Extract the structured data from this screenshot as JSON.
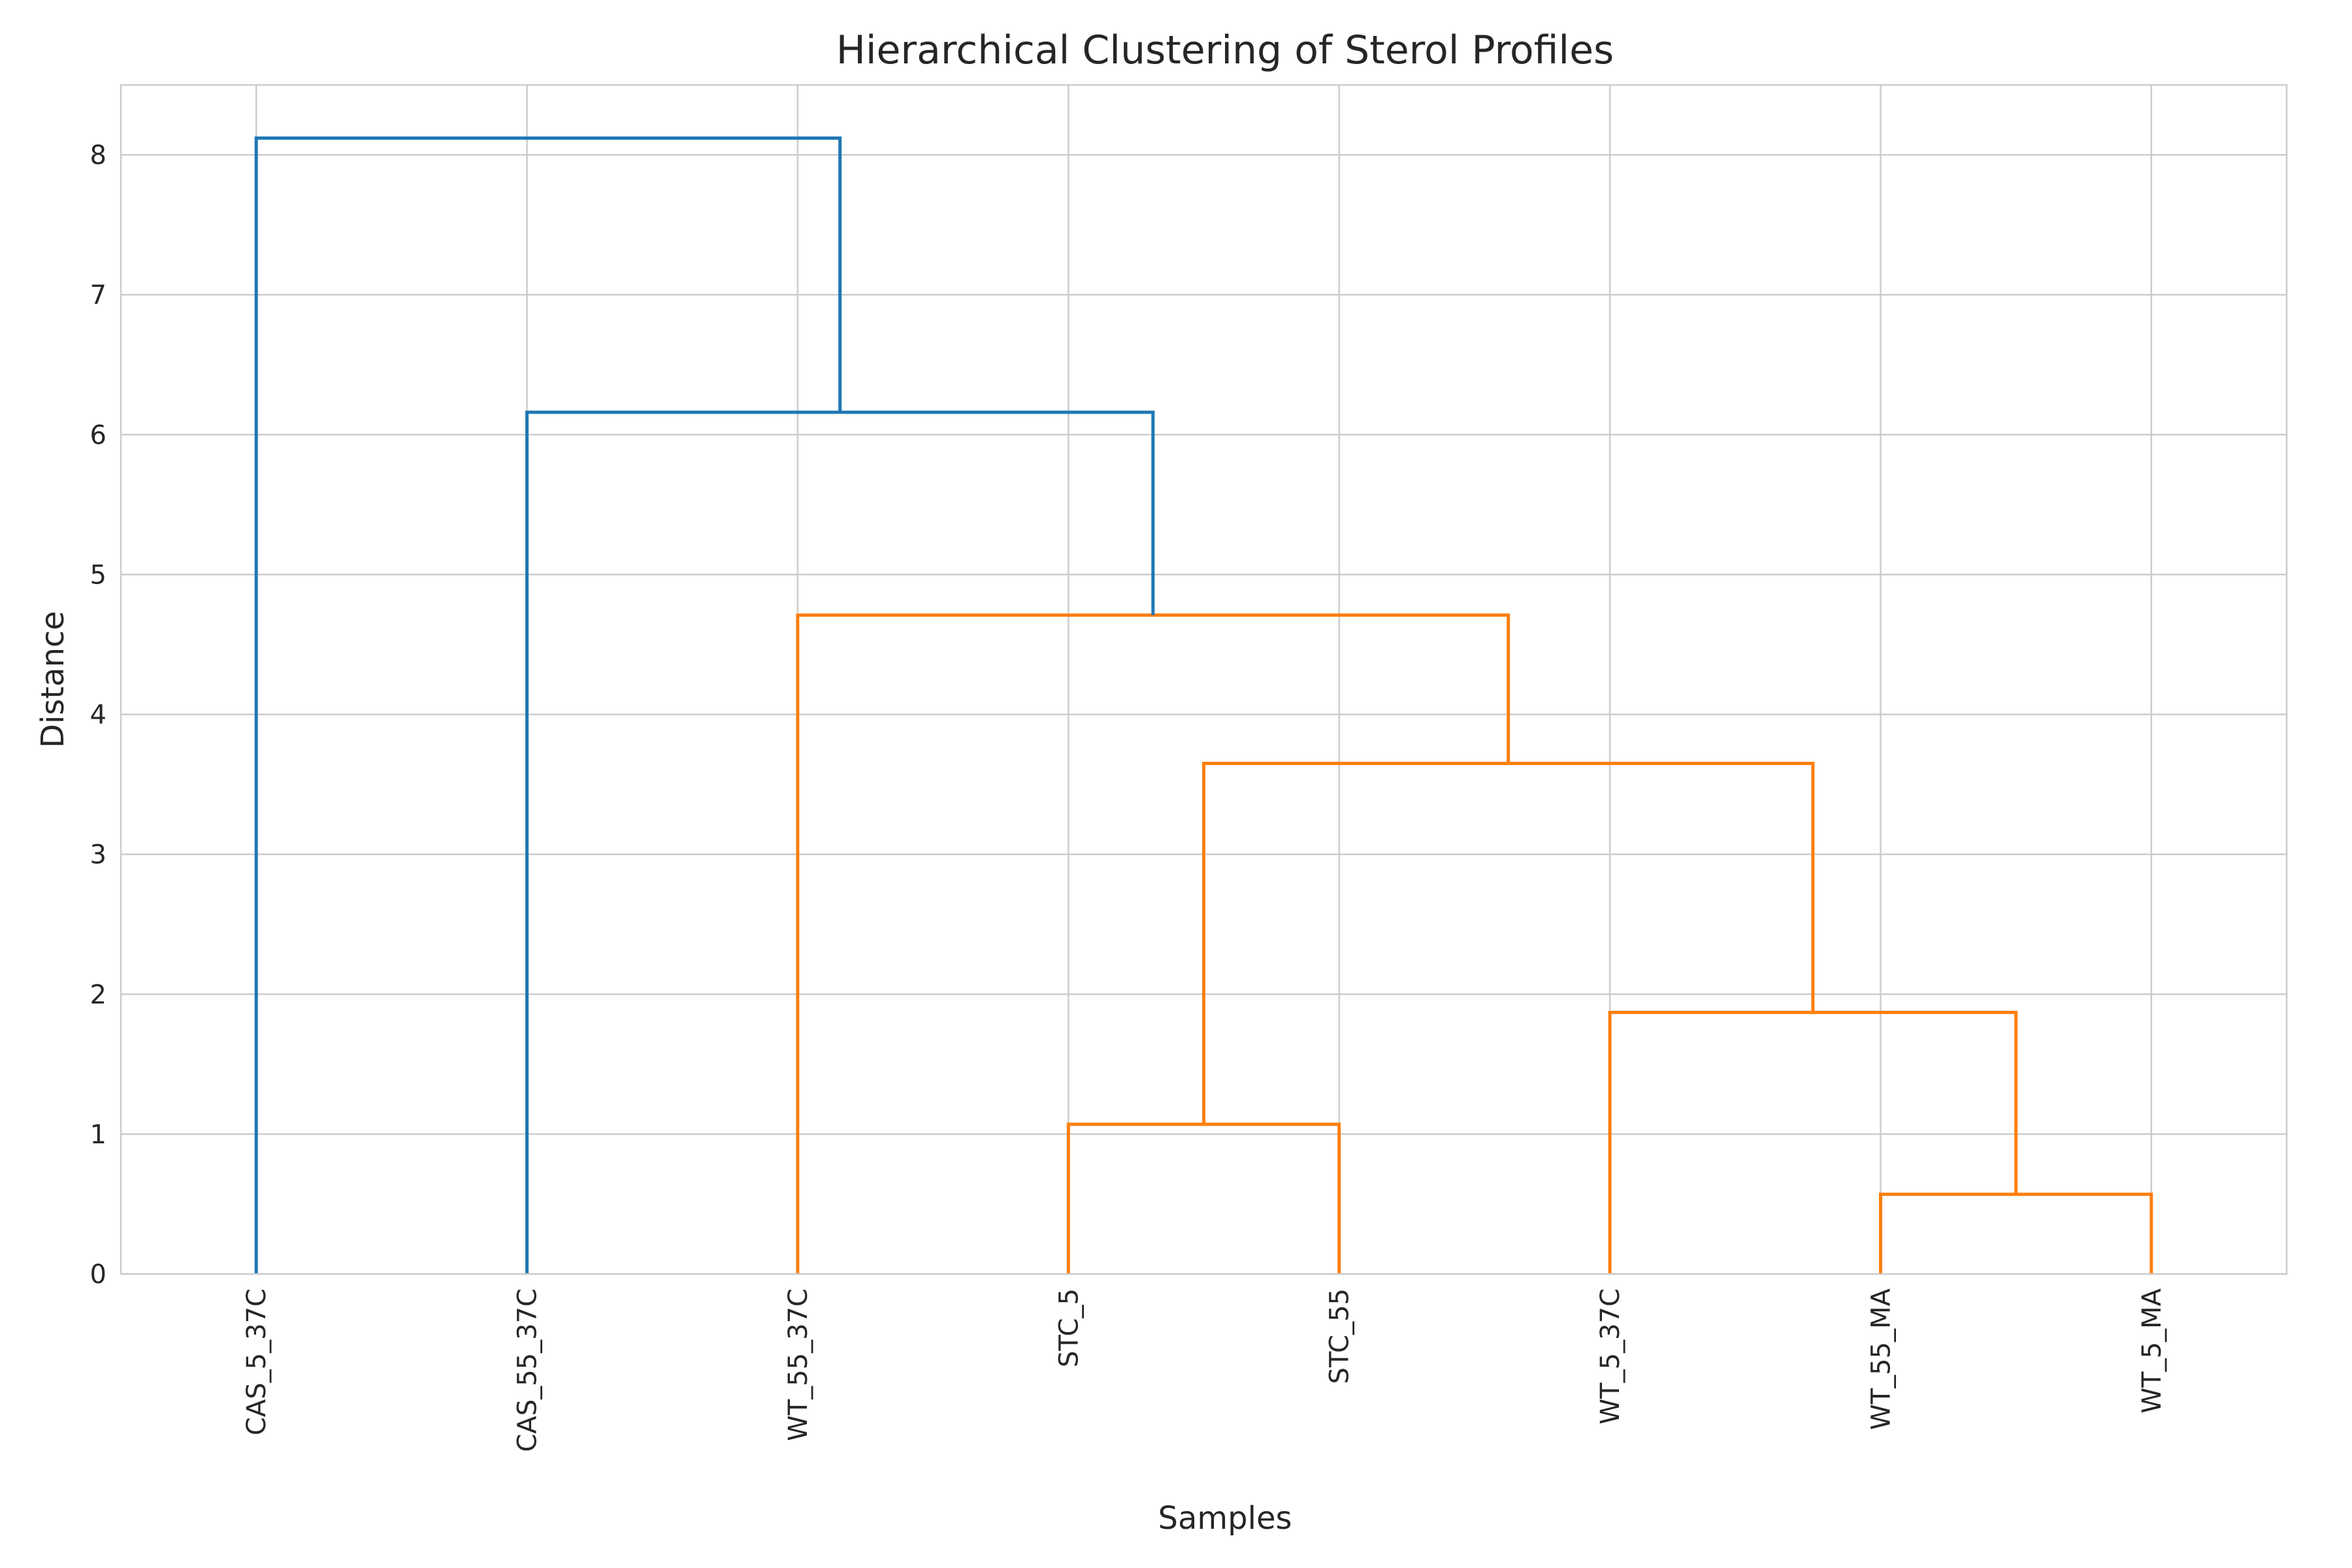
{
  "chart_data": {
    "type": "dendrogram",
    "title": "Hierarchical Clustering of Sterol Profiles",
    "xlabel": "Samples",
    "ylabel": "Distance",
    "ylim": [
      0,
      8.5
    ],
    "yticks": [
      0,
      1,
      2,
      3,
      4,
      5,
      6,
      7,
      8
    ],
    "grid": true,
    "leaves": [
      "CAS_5_37C",
      "CAS_55_37C",
      "WT_55_37C",
      "STC_5",
      "STC_55",
      "WT_5_37C",
      "WT_55_MA",
      "WT_5_MA"
    ],
    "colors": {
      "above_threshold": "#1f77b4",
      "cluster": "#ff7f0e"
    },
    "links": [
      {
        "left": 6,
        "right": 7,
        "height": 0.57,
        "left_height": 0,
        "right_height": 0,
        "color": "cluster"
      },
      {
        "left": 3,
        "right": 4,
        "height": 1.07,
        "left_height": 0,
        "right_height": 0,
        "color": "cluster"
      },
      {
        "left": 5,
        "right": 6.5,
        "height": 1.87,
        "left_height": 0,
        "right_height": 0.57,
        "color": "cluster"
      },
      {
        "left": 3.5,
        "right": 5.75,
        "height": 3.65,
        "left_height": 1.07,
        "right_height": 1.87,
        "color": "cluster"
      },
      {
        "left": 2,
        "right": 4.625,
        "height": 4.71,
        "left_height": 0,
        "right_height": 3.65,
        "color": "cluster"
      },
      {
        "left": 1,
        "right": 3.3125,
        "height": 6.16,
        "left_height": 0,
        "right_height": 4.71,
        "color": "above_threshold"
      },
      {
        "left": 0,
        "right": 2.15625,
        "height": 8.12,
        "left_height": 0,
        "right_height": 6.16,
        "color": "above_threshold"
      }
    ]
  }
}
